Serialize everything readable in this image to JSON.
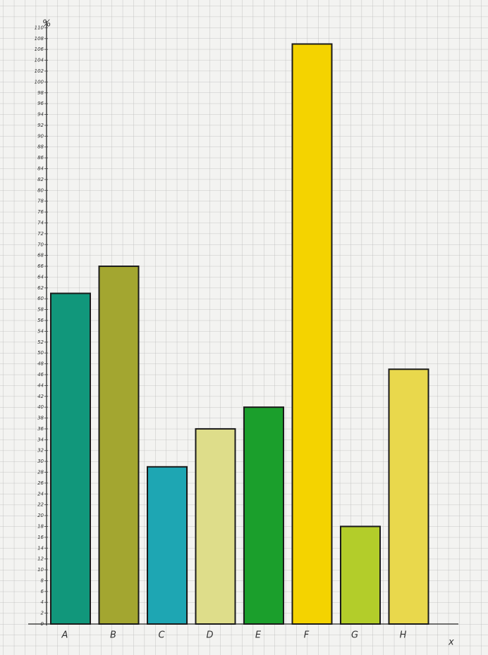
{
  "chart_data": {
    "type": "bar",
    "y_label": "%",
    "x_label": "x",
    "categories": [
      "A",
      "B",
      "C",
      "D",
      "E",
      "F",
      "G",
      "H"
    ],
    "values": [
      61,
      66,
      29,
      36,
      40,
      107,
      18,
      47
    ],
    "colors": [
      "#11977b",
      "#a3a630",
      "#1ea6b3",
      "#dedd8a",
      "#1b9f2c",
      "#f4d300",
      "#b3cd2a",
      "#e9d84c"
    ],
    "ylim": [
      0,
      112
    ],
    "yticks": [
      0,
      2,
      4,
      6,
      8,
      10,
      12,
      14,
      16,
      18,
      20,
      22,
      24,
      26,
      28,
      30,
      32,
      34,
      36,
      38,
      40,
      42,
      44,
      46,
      48,
      50,
      52,
      54,
      56,
      58,
      60,
      62,
      64,
      66,
      68,
      70,
      72,
      74,
      76,
      78,
      80,
      82,
      84,
      86,
      88,
      90,
      92,
      94,
      96,
      98,
      100,
      102,
      104,
      106,
      108,
      110
    ],
    "grid": true
  }
}
